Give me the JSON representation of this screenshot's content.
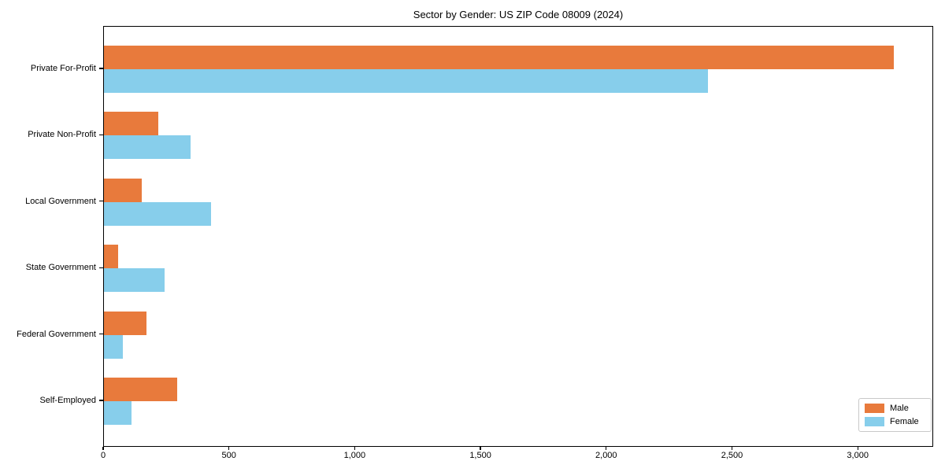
{
  "chart_data": {
    "type": "bar",
    "orientation": "horizontal",
    "title": "Sector by Gender: US ZIP Code 08009 (2024)",
    "categories": [
      "Private For-Profit",
      "Private Non-Profit",
      "Local Government",
      "State Government",
      "Federal Government",
      "Self-Employed"
    ],
    "series": [
      {
        "name": "Male",
        "color": "#e87a3c",
        "values": [
          3140,
          215,
          150,
          55,
          170,
          290
        ]
      },
      {
        "name": "Female",
        "color": "#87ceeb",
        "values": [
          2400,
          345,
          425,
          240,
          75,
          110
        ]
      }
    ],
    "xlabel": "",
    "ylabel": "",
    "xlim": [
      0,
      3300
    ],
    "xticks": [
      0,
      500,
      1000,
      1500,
      2000,
      2500,
      3000
    ],
    "xtick_labels": [
      "0",
      "500",
      "1,000",
      "1,500",
      "2,000",
      "2,500",
      "3,000"
    ],
    "grid": false,
    "legend_position": "lower right",
    "spine_color": "#000000",
    "background_color": "#ffffff"
  }
}
